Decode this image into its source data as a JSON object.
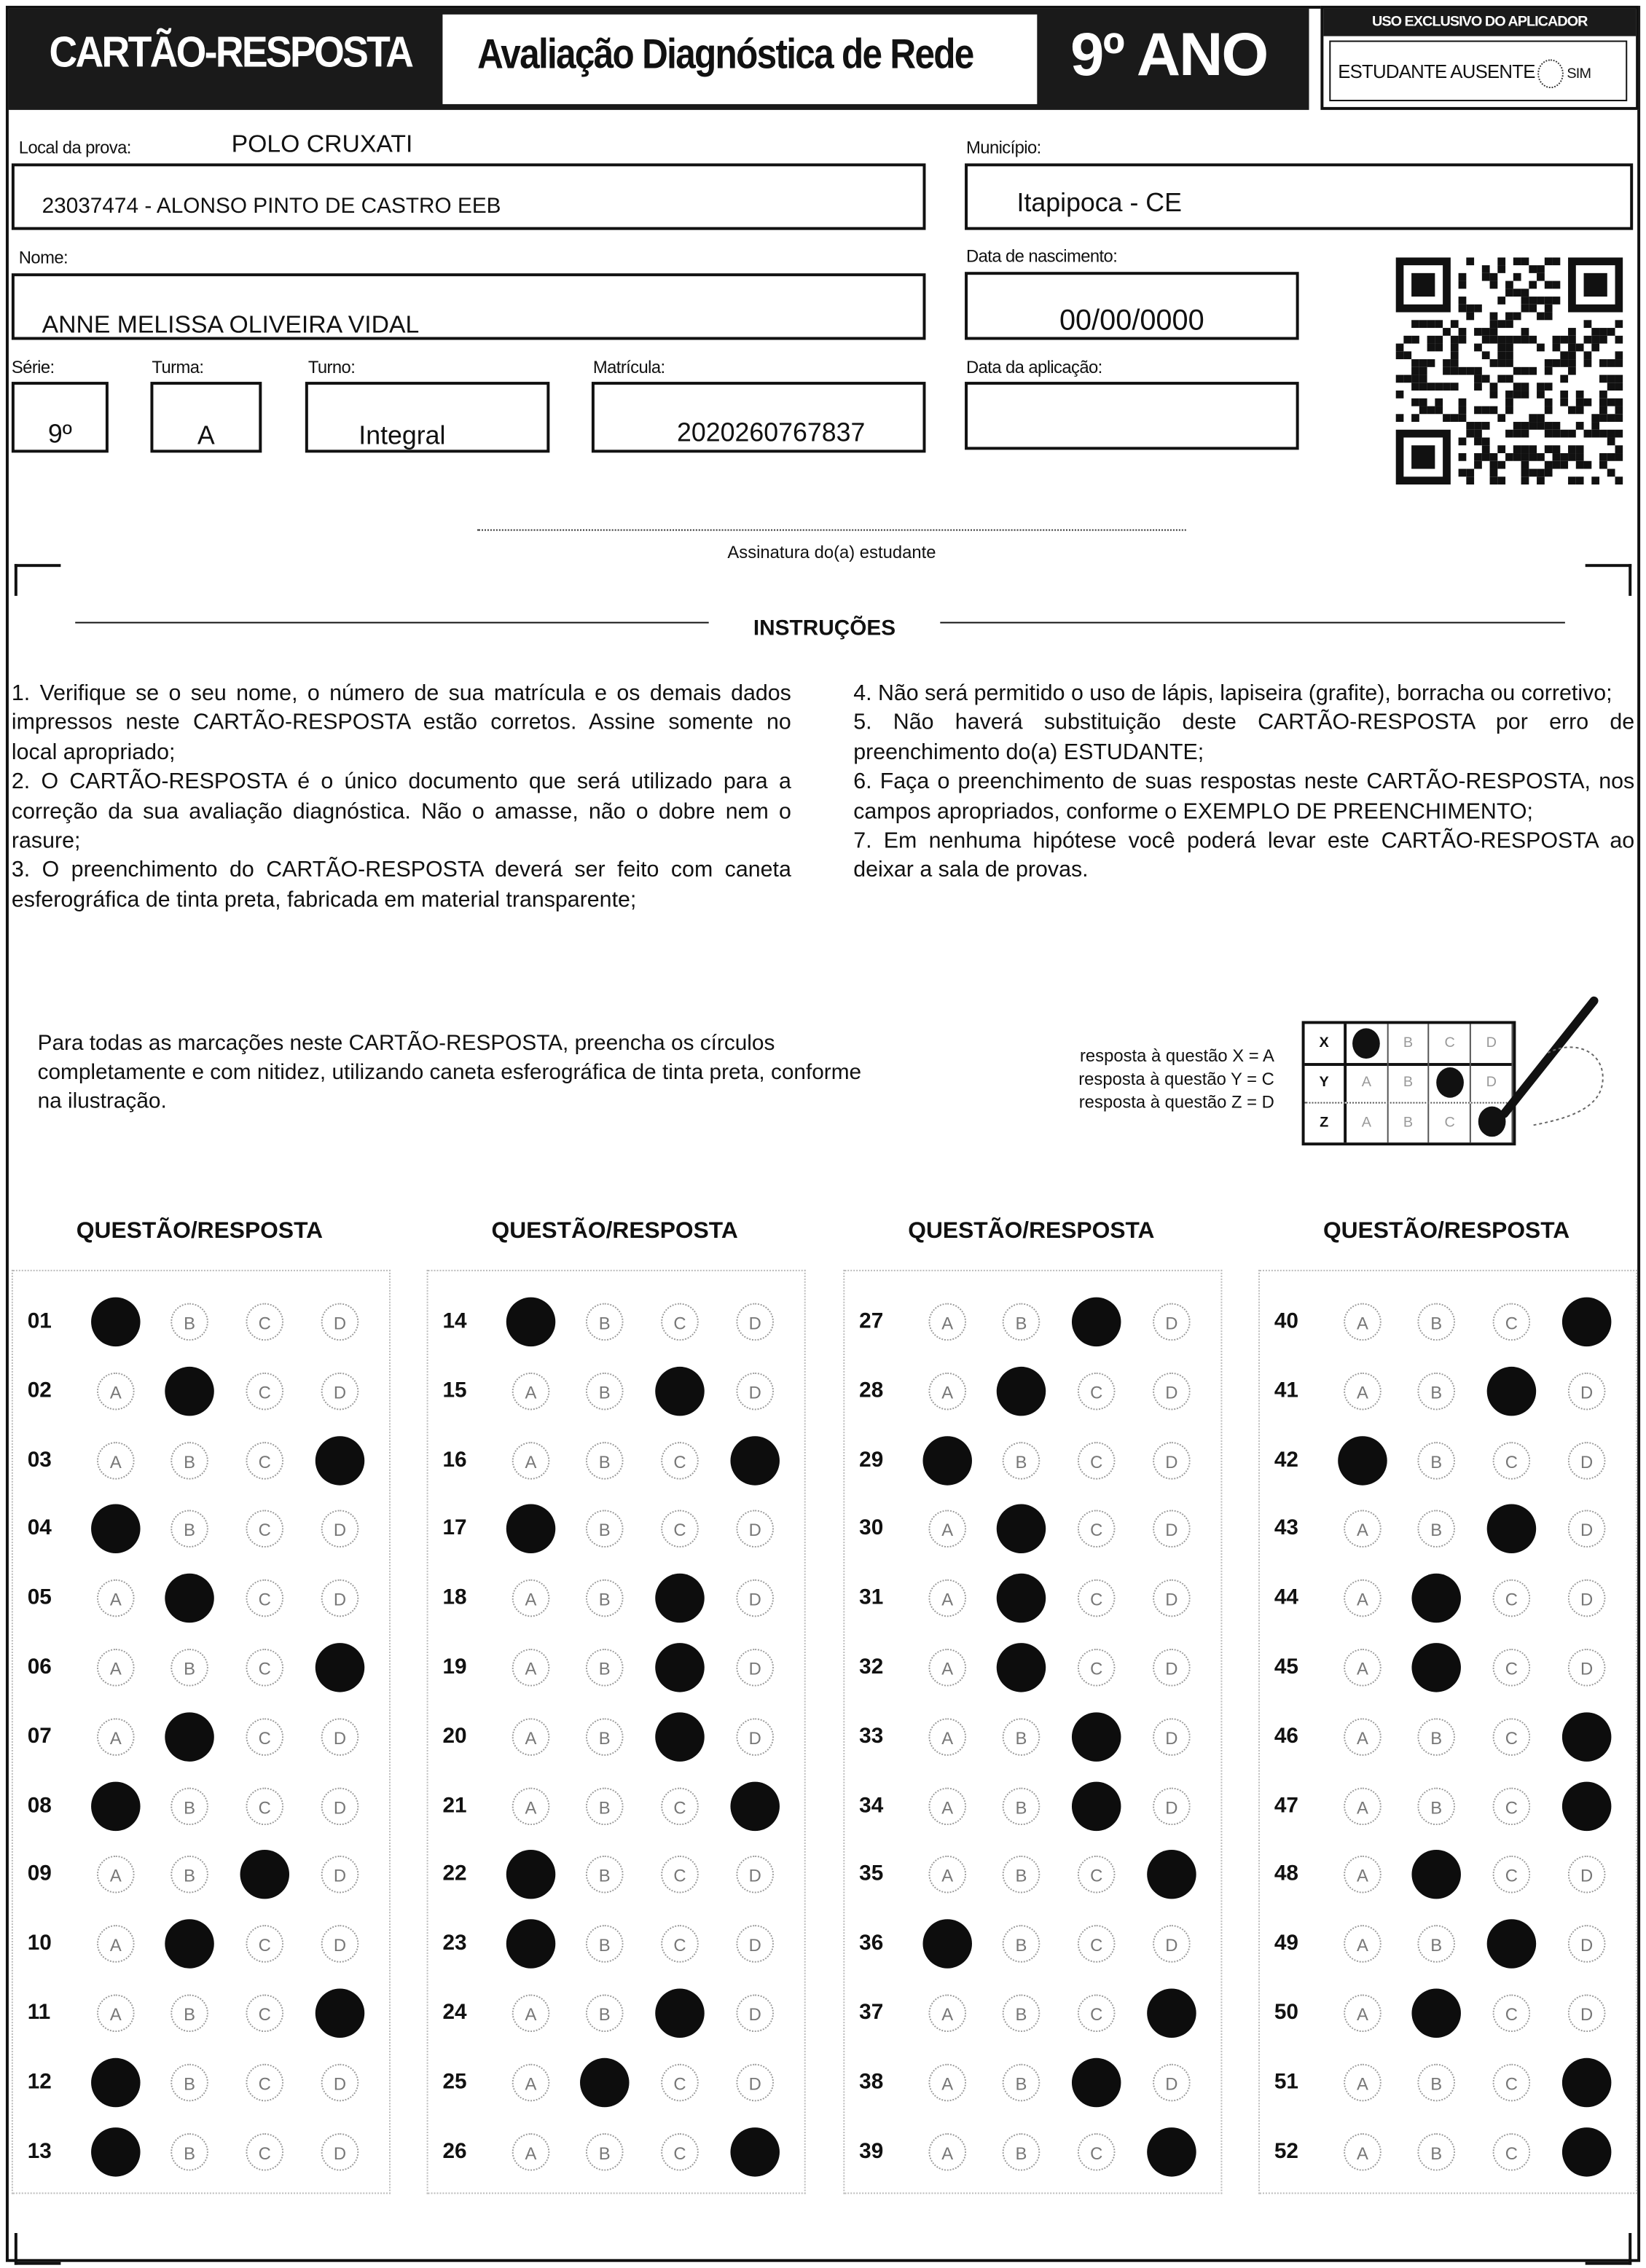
{
  "header": {
    "card_title": "CARTÃO-RESPOSTA",
    "exam_title": "Avaliação Diagnóstica de Rede",
    "grade": "9º ANO"
  },
  "applicator": {
    "title": "USO EXCLUSIVO DO APLICADOR",
    "absent_label": "ESTUDANTE AUSENTE",
    "yes_label": "SIM"
  },
  "student": {
    "local_label": "Local da prova:",
    "local_value": "POLO CRUXATI",
    "school": "23037474 - ALONSO PINTO DE CASTRO EEB",
    "municipio_label": "Município:",
    "municipio_value": "Itapipoca - CE",
    "nome_label": "Nome:",
    "nome_value": "ANNE MELISSA OLIVEIRA VIDAL",
    "nasc_label": "Data de nascimento:",
    "nasc_value": "00/00/0000",
    "serie_label": "Série:",
    "serie_value": "9º",
    "turma_label": "Turma:",
    "turma_value": "A",
    "turno_label": "Turno:",
    "turno_value": "Integral",
    "matricula_label": "Matrícula:",
    "matricula_value": "2020260767837",
    "aplicacao_label": "Data da aplicação:",
    "aplicacao_value": ""
  },
  "signature_label": "Assinatura do(a) estudante",
  "instructions": {
    "title": "INSTRUÇÕES",
    "left": "1. Verifique se o seu nome, o número de sua matrícula e os demais dados impressos neste CARTÃO-RESPOSTA estão corretos. Assine somente no local apropriado; 2. O CARTÃO-RESPOSTA é o único documento que será utilizado para a correção da sua avaliação diagnóstica. Não o amasse, não o dobre nem o rasure; 3. O preenchimento do CARTÃO-RESPOSTA deverá ser feito com caneta esferográfica de tinta preta, fabricada em material transparente;",
    "right": "4. Não será permitido o uso de lápis, lapiseira (grafite), borracha ou corretivo; 5. Não haverá substituição deste CARTÃO-RESPOSTA por erro de preenchimento do(a) ESTUDANTE; 6. Faça o preenchimento de suas respostas neste CARTÃO-RESPOSTA, nos campos apropriados, conforme o EXEMPLO DE PREENCHIMENTO; 7. Em nenhuma hipótese você poderá levar este CARTÃO-RESPOSTA ao deixar a sala de provas.",
    "items_left": [
      "1. Verifique se o seu nome, o número de sua matrícula e os demais dados impressos neste CARTÃO-RESPOSTA estão corretos. Assine somente no local apropriado;",
      "2. O CARTÃO-RESPOSTA é o único documento que será utilizado para a correção da sua avaliação diagnóstica. Não o amasse, não o dobre nem o rasure;",
      "3. O preenchimento do CARTÃO-RESPOSTA deverá ser feito com caneta esferográfica de tinta preta, fabricada em material transparente;"
    ],
    "items_right": [
      "4. Não será permitido o uso de lápis, lapiseira (grafite), borracha ou corretivo;",
      "5. Não haverá substituição deste CARTÃO-RESPOSTA por erro de preenchimento do(a) ESTUDANTE;",
      "6. Faça o preenchimento de suas respostas neste CARTÃO-RESPOSTA, nos campos apropriados, conforme o EXEMPLO DE PREENCHIMENTO;",
      "7. Em nenhuma hipótese você poderá levar este CARTÃO-RESPOSTA ao deixar a sala de provas."
    ]
  },
  "fill_note": "Para todas as marcações neste CARTÃO-RESPOSTA, preencha os círculos completamente e com nitidez, utilizando caneta esferográfica de tinta preta, conforme na ilustração.",
  "example": {
    "legend": [
      "resposta à questão X = A",
      "resposta à questão Y = C",
      "resposta à questão Z = D"
    ],
    "rows": [
      {
        "key": "X",
        "answer": "A"
      },
      {
        "key": "Y",
        "answer": "C"
      },
      {
        "key": "Z",
        "answer": "D"
      }
    ]
  },
  "column_header": "QUESTÃO/RESPOSTA",
  "options": [
    "A",
    "B",
    "C",
    "D"
  ],
  "answers": [
    {
      "q": "01",
      "a": "A"
    },
    {
      "q": "02",
      "a": "B"
    },
    {
      "q": "03",
      "a": "D"
    },
    {
      "q": "04",
      "a": "A"
    },
    {
      "q": "05",
      "a": "B"
    },
    {
      "q": "06",
      "a": "D"
    },
    {
      "q": "07",
      "a": "B"
    },
    {
      "q": "08",
      "a": "A"
    },
    {
      "q": "09",
      "a": "C"
    },
    {
      "q": "10",
      "a": "B"
    },
    {
      "q": "11",
      "a": "D"
    },
    {
      "q": "12",
      "a": "A"
    },
    {
      "q": "13",
      "a": "A"
    },
    {
      "q": "14",
      "a": "A"
    },
    {
      "q": "15",
      "a": "C"
    },
    {
      "q": "16",
      "a": "D"
    },
    {
      "q": "17",
      "a": "A"
    },
    {
      "q": "18",
      "a": "C"
    },
    {
      "q": "19",
      "a": "C"
    },
    {
      "q": "20",
      "a": "C"
    },
    {
      "q": "21",
      "a": "D"
    },
    {
      "q": "22",
      "a": "A"
    },
    {
      "q": "23",
      "a": "A"
    },
    {
      "q": "24",
      "a": "C"
    },
    {
      "q": "25",
      "a": "B"
    },
    {
      "q": "26",
      "a": "D"
    },
    {
      "q": "27",
      "a": "C"
    },
    {
      "q": "28",
      "a": "B"
    },
    {
      "q": "29",
      "a": "A"
    },
    {
      "q": "30",
      "a": "B"
    },
    {
      "q": "31",
      "a": "B"
    },
    {
      "q": "32",
      "a": "B"
    },
    {
      "q": "33",
      "a": "C"
    },
    {
      "q": "34",
      "a": "C"
    },
    {
      "q": "35",
      "a": "D"
    },
    {
      "q": "36",
      "a": "A"
    },
    {
      "q": "37",
      "a": "D"
    },
    {
      "q": "38",
      "a": "C"
    },
    {
      "q": "39",
      "a": "D"
    },
    {
      "q": "40",
      "a": "D"
    },
    {
      "q": "41",
      "a": "C"
    },
    {
      "q": "42",
      "a": "A"
    },
    {
      "q": "43",
      "a": "C"
    },
    {
      "q": "44",
      "a": "B"
    },
    {
      "q": "45",
      "a": "B"
    },
    {
      "q": "46",
      "a": "D"
    },
    {
      "q": "47",
      "a": "D"
    },
    {
      "q": "48",
      "a": "B"
    },
    {
      "q": "49",
      "a": "C"
    },
    {
      "q": "50",
      "a": "B"
    },
    {
      "q": "51",
      "a": "D"
    },
    {
      "q": "52",
      "a": "D"
    }
  ]
}
